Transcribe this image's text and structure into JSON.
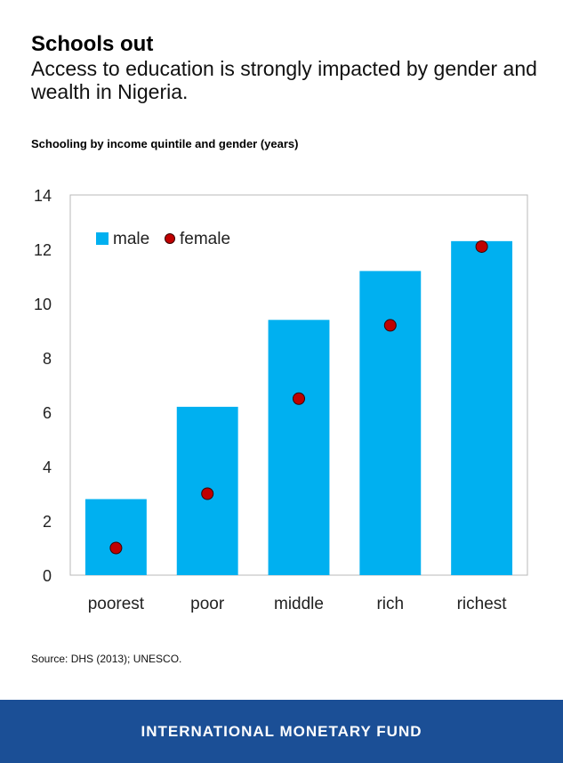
{
  "header": {
    "title": "Schools out",
    "subtitle": "Access to education is strongly impacted by gender and wealth in Nigeria."
  },
  "chart_data": {
    "type": "bar",
    "title": "Schooling by income quintile and gender (years)",
    "categories": [
      "poorest",
      "poor",
      "middle",
      "rich",
      "richest"
    ],
    "series": [
      {
        "name": "male",
        "type": "bar",
        "color": "#00b0f0",
        "values": [
          2.8,
          6.2,
          9.4,
          11.2,
          12.3
        ]
      },
      {
        "name": "female",
        "type": "scatter",
        "color": "#c00000",
        "values": [
          1.0,
          3.0,
          6.5,
          9.2,
          12.1
        ]
      }
    ],
    "ylim": [
      0,
      14
    ],
    "yticks": [
      0,
      2,
      4,
      6,
      8,
      10,
      12,
      14
    ],
    "xlabel": "",
    "ylabel": "",
    "grid": false,
    "legend": "top-left"
  },
  "source": "Source: DHS (2013); UNESCO.",
  "footer": {
    "label": "INTERNATIONAL MONETARY FUND"
  }
}
